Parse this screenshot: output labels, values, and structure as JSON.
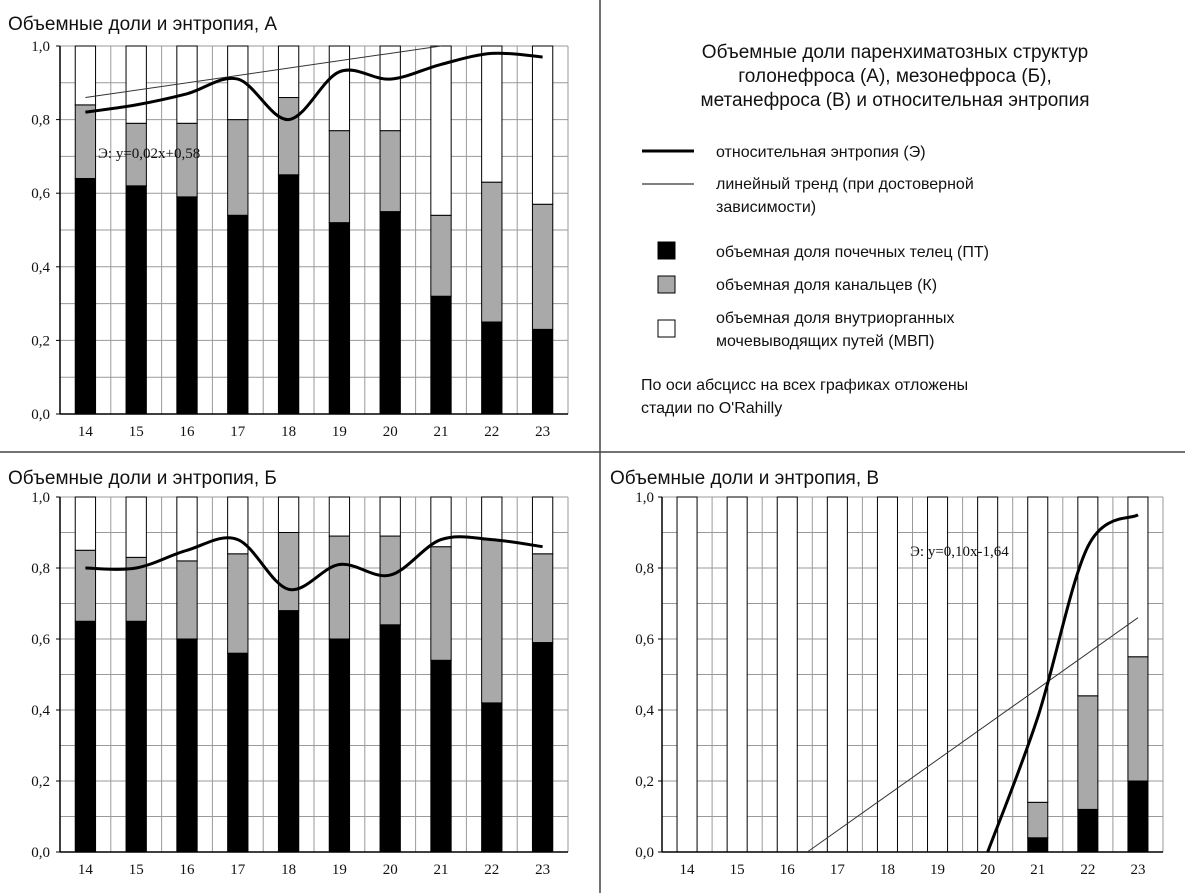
{
  "legend": {
    "title": [
      "Объемные доли паренхиматозных структур",
      "голонефроса (А), мезонефроса (Б),",
      "метанефроса (В) и относительная энтропия"
    ],
    "entries": [
      {
        "symbol": "thick-line",
        "lines": [
          "относительная энтропия (Э)"
        ]
      },
      {
        "symbol": "thin-line",
        "lines": [
          "линейный тренд (при достоверной",
          "зависимости)"
        ]
      },
      {
        "symbol": "black-box",
        "lines": [
          "объемная доля почечных телец (ПТ)"
        ]
      },
      {
        "symbol": "gray-box",
        "lines": [
          "объемная доля канальцев (К)"
        ]
      },
      {
        "symbol": "white-box",
        "lines": [
          "объемная доля внутриорганных",
          "мочевыводящих путей (МВП)"
        ]
      }
    ],
    "note": [
      "По оси абсцисс на всех графиках отложены",
      "стадии по O'Rahilly"
    ]
  },
  "colors": {
    "pt": "#000000",
    "k": "#a9a9a9",
    "mvp": "#ffffff",
    "grid": "#9a9a9a",
    "entropy": "#000000"
  },
  "chart_data": [
    {
      "type": "bar",
      "stacked": true,
      "title": "Объемные доли и энтропия, А",
      "categories": [
        "14",
        "15",
        "16",
        "17",
        "18",
        "19",
        "20",
        "21",
        "22",
        "23"
      ],
      "yticks": [
        "0,0",
        "0,2",
        "0,4",
        "0,6",
        "0,8",
        "1,0"
      ],
      "ylim": [
        0,
        1
      ],
      "grid": true,
      "series": [
        {
          "name": "объемная доля почечных телец (ПТ)",
          "values": [
            0.64,
            0.62,
            0.59,
            0.54,
            0.65,
            0.52,
            0.55,
            0.32,
            0.25,
            0.23
          ]
        },
        {
          "name": "объемная доля канальцев (К)",
          "values": [
            0.2,
            0.17,
            0.2,
            0.26,
            0.21,
            0.25,
            0.22,
            0.22,
            0.38,
            0.34
          ]
        },
        {
          "name": "объемная доля внутриорганных мочевыводящих путей (МВП)",
          "values": [
            0.16,
            0.21,
            0.21,
            0.2,
            0.14,
            0.23,
            0.23,
            0.46,
            0.37,
            0.43
          ]
        }
      ],
      "entropy": [
        0.82,
        0.84,
        0.87,
        0.91,
        0.8,
        0.93,
        0.91,
        0.95,
        0.98,
        0.97
      ],
      "trend": {
        "equation": "Э: y=0,02x+0,58",
        "slope": 0.02,
        "intercept": 0.58
      }
    },
    {
      "type": "bar",
      "stacked": true,
      "title": "Объемные доли и энтропия, Б",
      "categories": [
        "14",
        "15",
        "16",
        "17",
        "18",
        "19",
        "20",
        "21",
        "22",
        "23"
      ],
      "yticks": [
        "0,0",
        "0,2",
        "0,4",
        "0,6",
        "0,8",
        "1,0"
      ],
      "ylim": [
        0,
        1
      ],
      "grid": true,
      "series": [
        {
          "name": "объемная доля почечных телец (ПТ)",
          "values": [
            0.65,
            0.65,
            0.6,
            0.56,
            0.68,
            0.6,
            0.64,
            0.54,
            0.42,
            0.59
          ]
        },
        {
          "name": "объемная доля канальцев (К)",
          "values": [
            0.2,
            0.18,
            0.22,
            0.28,
            0.22,
            0.29,
            0.25,
            0.32,
            0.46,
            0.25
          ]
        },
        {
          "name": "объемная доля внутриорганных мочевыводящих путей (МВП)",
          "values": [
            0.15,
            0.17,
            0.18,
            0.16,
            0.1,
            0.11,
            0.11,
            0.14,
            0.12,
            0.16
          ]
        }
      ],
      "entropy": [
        0.8,
        0.8,
        0.85,
        0.88,
        0.74,
        0.81,
        0.78,
        0.88,
        0.88,
        0.86
      ]
    },
    {
      "type": "bar",
      "stacked": true,
      "title": "Объемные доли и энтропия, В",
      "categories": [
        "14",
        "15",
        "16",
        "17",
        "18",
        "19",
        "20",
        "21",
        "22",
        "23"
      ],
      "yticks": [
        "0,0",
        "0,2",
        "0,4",
        "0,6",
        "0,8",
        "1,0"
      ],
      "ylim": [
        0,
        1
      ],
      "grid": true,
      "series": [
        {
          "name": "объемная доля почечных телец (ПТ)",
          "values": [
            0,
            0,
            0,
            0,
            0,
            0,
            0,
            0.04,
            0.12,
            0.2
          ]
        },
        {
          "name": "объемная доля канальцев (К)",
          "values": [
            0,
            0,
            0,
            0,
            0,
            0,
            0,
            0.1,
            0.32,
            0.35
          ]
        },
        {
          "name": "объемная доля внутриорганных мочевыводящих путей (МВП)",
          "values": [
            1,
            1,
            1,
            1,
            1,
            1,
            1,
            0.86,
            0.56,
            0.45
          ]
        }
      ],
      "entropy": [
        null,
        null,
        null,
        null,
        null,
        null,
        0.0,
        0.38,
        0.86,
        0.95
      ],
      "trend": {
        "equation": "Э: y=0,10x-1,64",
        "slope": 0.1,
        "intercept": -1.64
      }
    }
  ]
}
